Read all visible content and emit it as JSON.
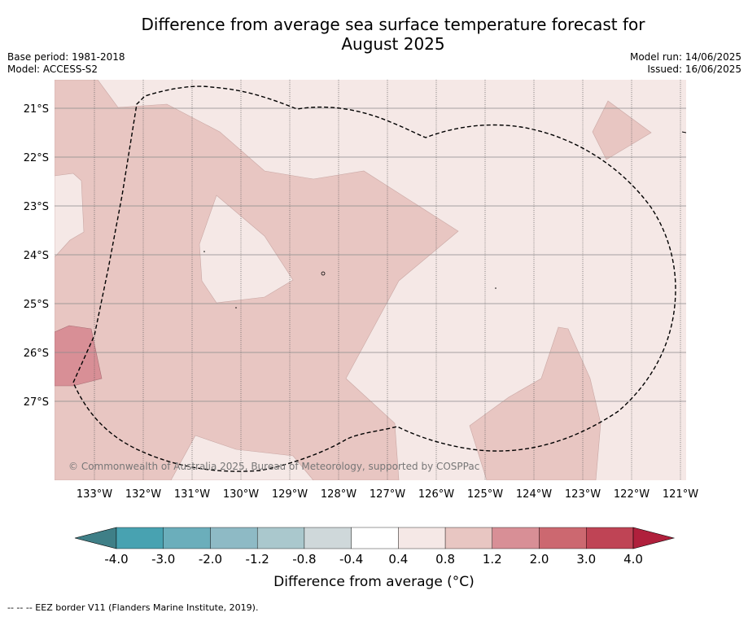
{
  "title_line1": "Difference from average sea surface temperature forecast for",
  "title_line2": "August 2025",
  "meta_left": [
    "Base period: 1981-2018",
    "Model: ACCESS-S2"
  ],
  "meta_right": [
    "Model run: 14/06/2025",
    "Issued: 16/06/2025"
  ],
  "copyright": "© Commonwealth of Australia 2025, Bureau of Meteorology, supported by COSPPac",
  "lat_labels": [
    "21°S",
    "22°S",
    "23°S",
    "24°S",
    "25°S",
    "26°S",
    "27°S"
  ],
  "lon_labels": [
    "133°W",
    "132°W",
    "131°W",
    "130°W",
    "129°W",
    "128°W",
    "127°W",
    "126°W",
    "125°W",
    "124°W",
    "123°W",
    "122°W",
    "121°W"
  ],
  "colorbar": {
    "label": "Difference from average (°C)",
    "ticks": [
      "-4.0",
      "-3.0",
      "-2.0",
      "-1.2",
      "-0.8",
      "-0.4",
      "0.4",
      "0.8",
      "1.2",
      "2.0",
      "3.0",
      "4.0"
    ],
    "under_color": "#3f7f87",
    "over_color": "#b0203c",
    "colors": [
      "#48a2b1",
      "#6baebb",
      "#8ebac5",
      "#aac8cd",
      "#cfd8da",
      "#ffffff",
      "#f5e8e6",
      "#e8c6c2",
      "#d88f96",
      "#cc6870",
      "#bf4455"
    ]
  },
  "footer": "--  --  -- EEZ border V11 (Flanders Marine Institute, 2019)."
}
